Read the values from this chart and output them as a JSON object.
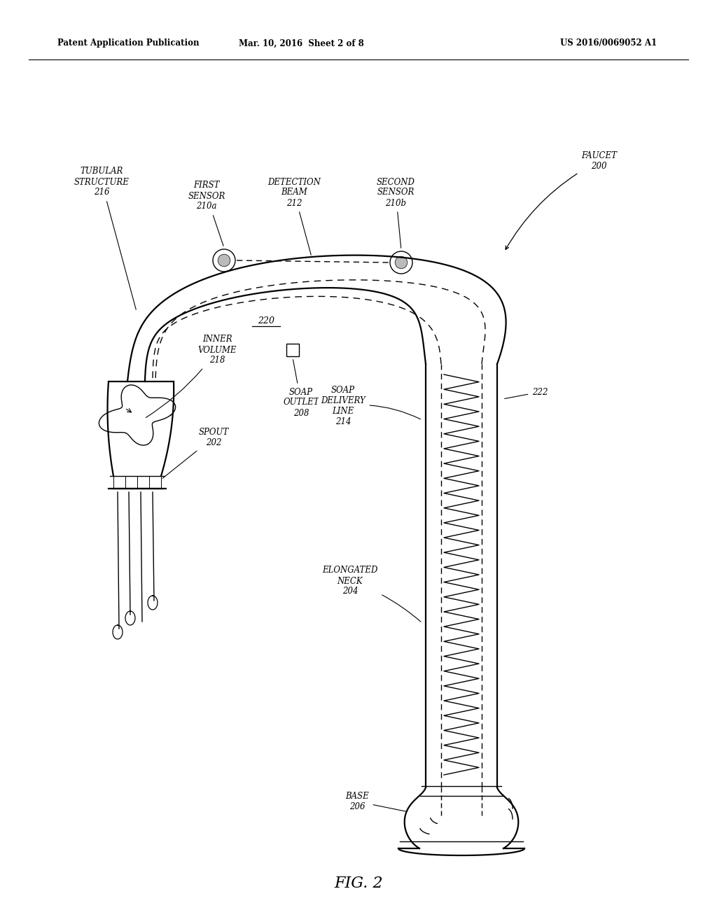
{
  "bg_color": "#ffffff",
  "line_color": "#000000",
  "header_left": "Patent Application Publication",
  "header_mid": "Mar. 10, 2016  Sheet 2 of 8",
  "header_right": "US 2016/0069052 A1",
  "fig_label": "FIG. 2"
}
